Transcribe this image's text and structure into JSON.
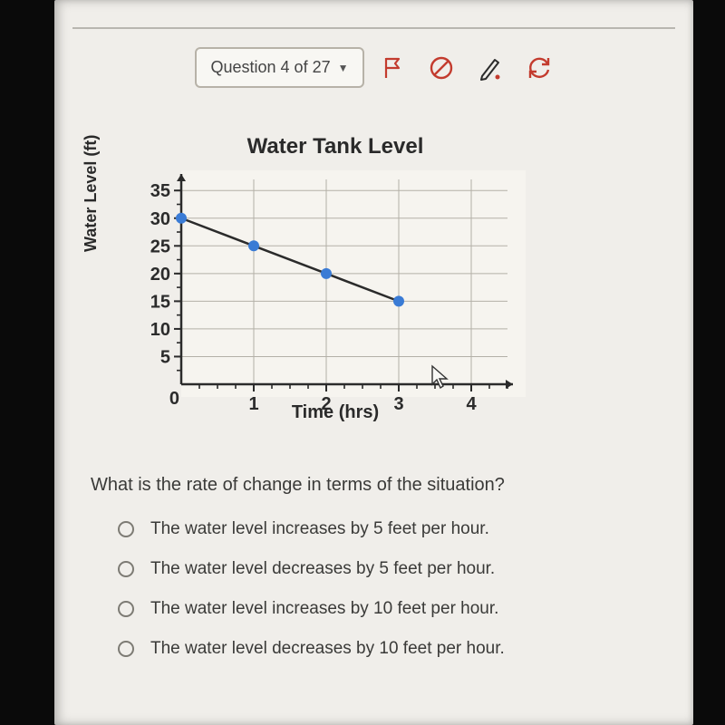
{
  "toolbar": {
    "question_label": "Question 4 of 27"
  },
  "chart": {
    "type": "line-scatter",
    "title": "Water Tank Level",
    "xlabel": "Time (hrs)",
    "ylabel": "Water Level (ft)",
    "xlim": [
      0,
      4.5
    ],
    "ylim": [
      0,
      37
    ],
    "x_ticks_major": [
      1,
      2,
      3,
      4
    ],
    "y_ticks_major": [
      5,
      10,
      15,
      20,
      25,
      30,
      35
    ],
    "x_minor_step": 0.25,
    "y_minor_step": 2.5,
    "points": [
      {
        "x": 0,
        "y": 30
      },
      {
        "x": 1,
        "y": 25
      },
      {
        "x": 2,
        "y": 20
      },
      {
        "x": 3,
        "y": 15
      }
    ],
    "point_color": "#3a7bd5",
    "line_color": "#2b2b2b",
    "grid_color": "#b3b0a7",
    "axis_color": "#2b2b2b",
    "tick_label_color": "#2b2b2b",
    "tick_label_fontsize": 20,
    "point_radius": 6,
    "line_width": 2.5,
    "background_color": "#f6f4ef",
    "axis_stroke_width": 2.5
  },
  "question": {
    "text": "What is the rate of change in terms of the situation?",
    "options": [
      "The water level increases by 5 feet per hour.",
      "The water level decreases by 5 feet per hour.",
      "The water level increases by 10 feet per hour.",
      "The water level decreases by 10 feet per hour."
    ]
  },
  "icons": {
    "flag_color": "#c33b2e",
    "prohibit_color": "#c33b2e",
    "pencil_color": "#2b2b2b",
    "pencil_dot_color": "#c33b2e",
    "refresh_color": "#c33b2e"
  }
}
